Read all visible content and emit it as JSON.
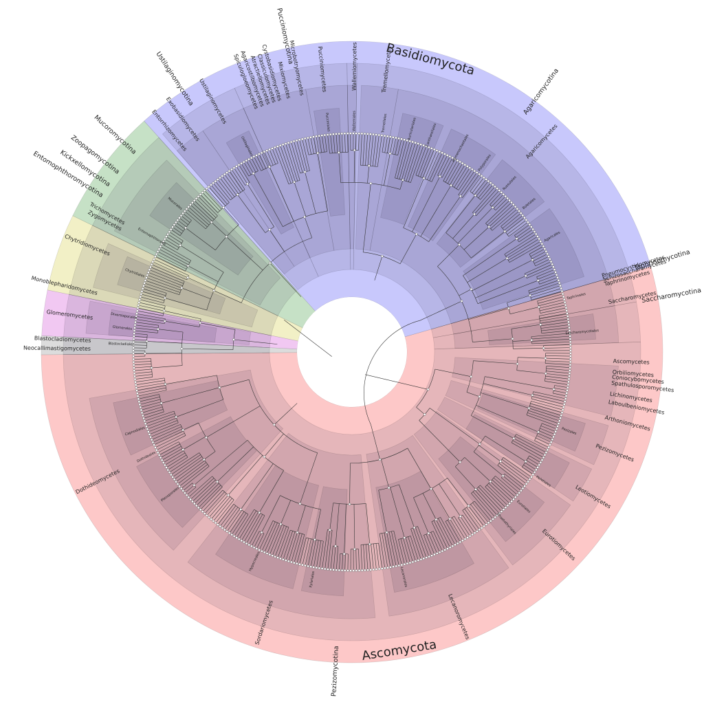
{
  "phyla": [
    "Basidiomycota",
    "Ascomycota"
  ],
  "subphyla": [
    "Agaricomycotina",
    "Pucciniomycotina",
    "Ustilaginomycotina",
    "Mucoromycotina",
    "Zoopagomycotina",
    "Kickxellomycotina",
    "Entomophthoromycotina",
    "Taphrinomycotina",
    "Saccharomycotina",
    "Pezizomycotina"
  ],
  "classes": [
    "Agaricomycetes",
    "Tremellomycetes",
    "Wallemiomycetes",
    "Pucciniomycetes",
    "Microbotryomycetes",
    "Mixiomycetes",
    "Cystobasidiomycetes",
    "Classiculomycetes",
    "Atractiellomycetes",
    "Agaricostilbomycetes",
    "Spiculogloeomycetes",
    "Ustilaginomycetes",
    "Exobasidiomycetes",
    "Entorrhizomycetes",
    "Trichomycetes",
    "Zygomycetes",
    "Chytridiomycetes",
    "Monoblepharidomycetes",
    "Glomeromycetes",
    "Blastocladiomycetes",
    "Neocallimastigomycetes",
    "Dothideomycetes",
    "Sordariomycetes",
    "Lecanoromycetes",
    "Eurotiomycetes",
    "Leotiomycetes",
    "Pezizomycetes",
    "Arthoniomycetes",
    "Laboulbeniomycetes",
    "Lichinomycetes",
    "Spathulosporomycetes",
    "Coniocybomycetes",
    "Orbiliomycetes",
    "Ascomycetes",
    "Saccharomycetes",
    "Taphrinomycetes",
    "Schizosaccharomycetes",
    "Pneumocystidomycetes"
  ],
  "orders": [
    "Agaricales",
    "Boletales",
    "Russulales",
    "Polyporales",
    "Hymenochaetales",
    "Cantharellales",
    "Auriculariales",
    "Tremellales",
    "Wallemiales",
    "Pucciniales",
    "Ustilaginales",
    "Mucorales",
    "Entomophthorales",
    "Chytridiales",
    "Diversisporales",
    "Glomerales",
    "Blastocladiales",
    "Capnodiales",
    "Dothideales",
    "Pleosporales",
    "Hypocreales",
    "Xylariales",
    "Lecanorales",
    "Chaetothyriales",
    "Eurotiales",
    "Helotiales",
    "Pezizales",
    "Saccharomycetales",
    "Taphrinales"
  ]
}
